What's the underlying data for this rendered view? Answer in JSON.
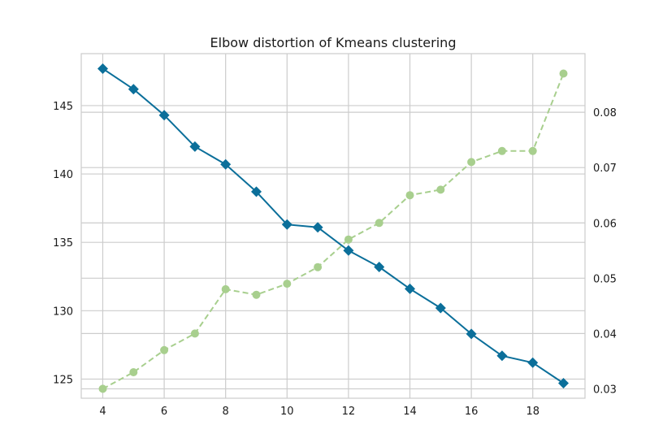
{
  "chart_data": {
    "type": "line",
    "title": "Elbow distortion of Kmeans clustering",
    "xlabel": "",
    "ylabel": "",
    "y2label": "",
    "x": [
      4,
      5,
      6,
      7,
      8,
      9,
      10,
      11,
      12,
      13,
      14,
      15,
      16,
      17,
      18,
      19
    ],
    "xlim": [
      3.3,
      19.7
    ],
    "ylim": [
      123.6,
      148.8
    ],
    "y2lim": [
      0.0283,
      0.0906
    ],
    "x_ticks": [
      4,
      6,
      8,
      10,
      12,
      14,
      16,
      18
    ],
    "y_ticks": [
      125,
      130,
      135,
      140,
      145
    ],
    "y2_ticks": [
      0.03,
      0.04,
      0.05,
      0.06,
      0.07,
      0.08
    ],
    "x_tick_labels": [
      "4",
      "6",
      "8",
      "10",
      "12",
      "14",
      "16",
      "18"
    ],
    "y_tick_labels": [
      "125",
      "130",
      "135",
      "140",
      "145"
    ],
    "y2_tick_labels": [
      "0.03",
      "0.04",
      "0.05",
      "0.06",
      "0.07",
      "0.08"
    ],
    "grid": true,
    "series": [
      {
        "axis": "left",
        "style": "solid",
        "marker": "diamond",
        "color": "#0b6f9a",
        "values": [
          147.7,
          146.2,
          144.3,
          142.0,
          140.7,
          138.7,
          136.3,
          136.1,
          134.4,
          133.2,
          131.6,
          130.2,
          128.3,
          126.7,
          126.2,
          124.7
        ]
      },
      {
        "axis": "right",
        "style": "dashed",
        "marker": "circle",
        "color": "#a8cf8e",
        "values": [
          0.03,
          0.033,
          0.037,
          0.04,
          0.048,
          0.047,
          0.049,
          0.052,
          0.057,
          0.06,
          0.065,
          0.066,
          0.071,
          0.073,
          0.073,
          0.087
        ]
      }
    ]
  }
}
